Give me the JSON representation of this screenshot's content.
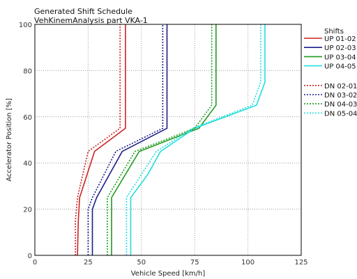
{
  "chart_data": {
    "type": "line",
    "title": "Generated Shift Schedule",
    "subtitle": "VehKinemAnalysis part VKA-1",
    "xlabel": "Vehicle Speed [km/h]",
    "ylabel": "Accelerator Position [%]",
    "xlim": [
      0,
      125
    ],
    "ylim": [
      0,
      100
    ],
    "xticks": [
      0,
      25,
      50,
      75,
      100,
      125
    ],
    "yticks": [
      0,
      20,
      40,
      60,
      80,
      100
    ],
    "grid": true,
    "legend_title": "Shifts",
    "legend_position": "right",
    "series": [
      {
        "name": "UP 01-02",
        "color": "#cc2222",
        "dash": "solid",
        "x": [
          20,
          20.4,
          21,
          28,
          42.5,
          42.5
        ],
        "y": [
          0,
          15,
          25,
          45,
          55,
          100
        ]
      },
      {
        "name": "UP 02-03",
        "color": "#1c1c8c",
        "dash": "solid",
        "x": [
          27,
          27,
          29,
          41,
          62,
          62
        ],
        "y": [
          0,
          20,
          25,
          45,
          55,
          100
        ]
      },
      {
        "name": "UP 03-04",
        "color": "#1f9a1f",
        "dash": "solid",
        "x": [
          36,
          36,
          49,
          77,
          85,
          85
        ],
        "y": [
          0,
          25,
          45,
          55,
          65,
          100
        ]
      },
      {
        "name": "UP 04-05",
        "color": "#22dddd",
        "dash": "solid",
        "x": [
          45,
          45,
          53,
          59,
          75,
          104,
          108,
          108
        ],
        "y": [
          0,
          25,
          35,
          45,
          55,
          65,
          75,
          100
        ]
      },
      {
        "name": "DN 02-01",
        "color": "#cc2222",
        "dash": "dotted",
        "x": [
          19,
          19,
          20,
          25,
          40,
          40
        ],
        "y": [
          0,
          15,
          25,
          45,
          55,
          100
        ]
      },
      {
        "name": "DN 03-02",
        "color": "#1c1c8c",
        "dash": "dotted",
        "x": [
          25,
          25,
          27,
          38,
          60,
          60
        ],
        "y": [
          0,
          20,
          25,
          45,
          55,
          100
        ]
      },
      {
        "name": "DN 04-03",
        "color": "#1f9a1f",
        "dash": "dotted",
        "x": [
          34,
          34,
          47,
          75,
          83,
          83
        ],
        "y": [
          0,
          25,
          45,
          55,
          65,
          100
        ]
      },
      {
        "name": "DN 05-04",
        "color": "#22dddd",
        "dash": "dotted",
        "x": [
          43,
          43,
          50,
          57,
          74,
          102,
          106,
          106
        ],
        "y": [
          0,
          25,
          35,
          45,
          55,
          65,
          75,
          100
        ]
      }
    ]
  }
}
